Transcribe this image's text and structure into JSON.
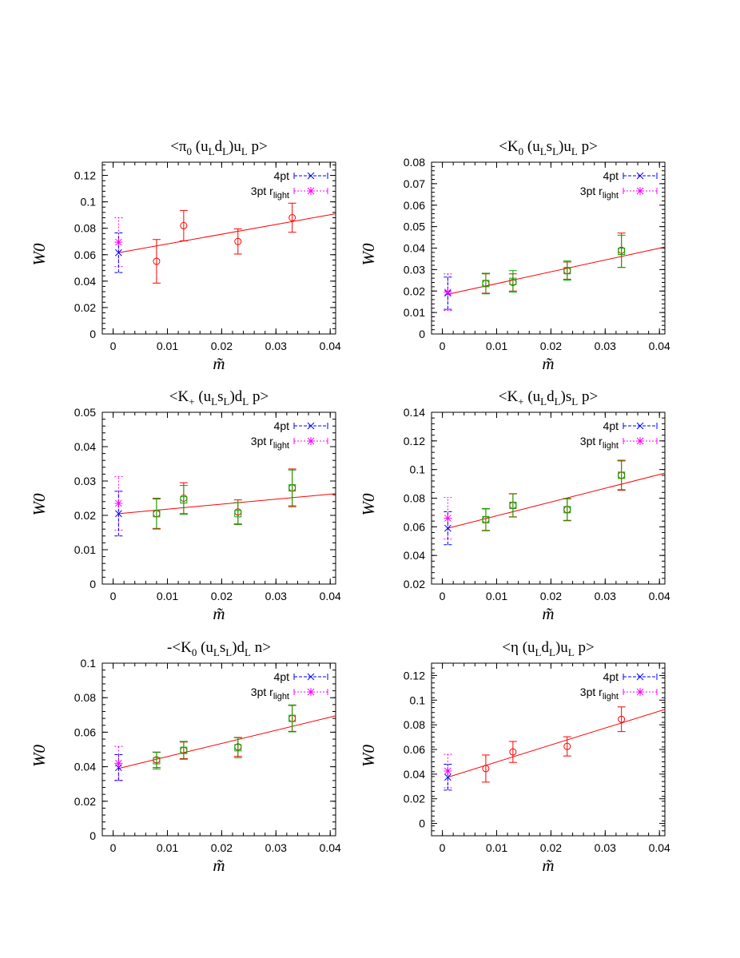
{
  "colors": {
    "fit": "#ff0000",
    "points_red": "#ff0000",
    "points_green": "#00aa00",
    "four_pt": "#0000ff",
    "three_pt": "#ff00ff",
    "axis": "#000000"
  },
  "chart_data": [
    {
      "type": "scatter",
      "title": "<π0 (uLdL)uL p>",
      "title_parts": [
        {
          "t": "<π"
        },
        {
          "t": "0",
          "sub": true
        },
        {
          "t": " (u"
        },
        {
          "t": "L",
          "sub": true
        },
        {
          "t": "d"
        },
        {
          "t": "L",
          "sub": true
        },
        {
          "t": ")u"
        },
        {
          "t": "L",
          "sub": true
        },
        {
          "t": " p>"
        }
      ],
      "xlabel": "m̃",
      "ylabel": "W0",
      "xlim": [
        -0.002,
        0.041
      ],
      "ylim": [
        0,
        0.13
      ],
      "x_ticks": [
        "0",
        "0.01",
        "0.02",
        "0.03",
        "0.04"
      ],
      "y_ticks": [
        "0",
        "0.02",
        "0.04",
        "0.06",
        "0.08",
        "0.1",
        "0.12"
      ],
      "legend": {
        "placement": "top-right",
        "entries": [
          "4pt",
          "3pt r"
        ],
        "entry2_sub": "light"
      },
      "fit_line": {
        "x": [
          0.001,
          0.041
        ],
        "y": [
          0.0615,
          0.091
        ]
      },
      "series": [
        {
          "name": "red",
          "marker": "circle",
          "points": [
            {
              "x": 0.008,
              "y": 0.055,
              "err": 0.0165
            },
            {
              "x": 0.013,
              "y": 0.082,
              "err": 0.0115
            },
            {
              "x": 0.023,
              "y": 0.07,
              "err": 0.0095
            },
            {
              "x": 0.033,
              "y": 0.088,
              "err": 0.011
            }
          ]
        }
      ],
      "four_pt": {
        "x": 0.001,
        "y": 0.0615,
        "err": 0.015
      },
      "three_pt": {
        "x": 0.001,
        "y": 0.0695,
        "err": 0.0185
      }
    },
    {
      "type": "scatter",
      "title": "<K0 (uLsL)uL p>",
      "title_parts": [
        {
          "t": "<K"
        },
        {
          "t": "0",
          "sub": true
        },
        {
          "t": " (u"
        },
        {
          "t": "L",
          "sub": true
        },
        {
          "t": "s"
        },
        {
          "t": "L",
          "sub": true
        },
        {
          "t": ")u"
        },
        {
          "t": "L",
          "sub": true
        },
        {
          "t": " p>"
        }
      ],
      "xlabel": "m̃",
      "ylabel": "W0",
      "xlim": [
        -0.002,
        0.041
      ],
      "ylim": [
        0,
        0.08
      ],
      "x_ticks": [
        "0",
        "0.01",
        "0.02",
        "0.03",
        "0.04"
      ],
      "y_ticks": [
        "0",
        "0.01",
        "0.02",
        "0.03",
        "0.04",
        "0.05",
        "0.06",
        "0.07",
        "0.08"
      ],
      "legend": {
        "placement": "top-right",
        "entries": [
          "4pt",
          "3pt r"
        ],
        "entry2_sub": "light"
      },
      "fit_line": {
        "x": [
          0.001,
          0.041
        ],
        "y": [
          0.0185,
          0.0405
        ]
      },
      "series": [
        {
          "name": "red",
          "marker": "circle",
          "points": [
            {
              "x": 0.008,
              "y": 0.0235,
              "err": 0.0045
            },
            {
              "x": 0.013,
              "y": 0.024,
              "err": 0.004
            },
            {
              "x": 0.023,
              "y": 0.0295,
              "err": 0.004
            },
            {
              "x": 0.033,
              "y": 0.039,
              "err": 0.008
            }
          ]
        },
        {
          "name": "green",
          "marker": "square",
          "points": [
            {
              "x": 0.008,
              "y": 0.0235,
              "err": 0.0048
            },
            {
              "x": 0.013,
              "y": 0.0245,
              "err": 0.005
            },
            {
              "x": 0.023,
              "y": 0.0295,
              "err": 0.0045
            },
            {
              "x": 0.033,
              "y": 0.0385,
              "err": 0.0075
            }
          ]
        }
      ],
      "four_pt": {
        "x": 0.001,
        "y": 0.019,
        "err": 0.0075
      },
      "three_pt": {
        "x": 0.001,
        "y": 0.0195,
        "err": 0.0085
      }
    },
    {
      "type": "scatter",
      "title": "<K+ (uLsL)dL p>",
      "title_parts": [
        {
          "t": "<K"
        },
        {
          "t": "+",
          "sub": true
        },
        {
          "t": " (u"
        },
        {
          "t": "L",
          "sub": true
        },
        {
          "t": "s"
        },
        {
          "t": "L",
          "sub": true
        },
        {
          "t": ")d"
        },
        {
          "t": "L",
          "sub": true
        },
        {
          "t": " p>"
        }
      ],
      "xlabel": "m̃",
      "ylabel": "W0",
      "xlim": [
        -0.002,
        0.041
      ],
      "ylim": [
        0,
        0.05
      ],
      "x_ticks": [
        "0",
        "0.01",
        "0.02",
        "0.03",
        "0.04"
      ],
      "y_ticks": [
        "0",
        "0.01",
        "0.02",
        "0.03",
        "0.04",
        "0.05"
      ],
      "legend": {
        "placement": "top-right",
        "entries": [
          "4pt",
          "3pt r"
        ],
        "entry2_sub": "light"
      },
      "fit_line": {
        "x": [
          0.001,
          0.041
        ],
        "y": [
          0.0205,
          0.0263
        ]
      },
      "series": [
        {
          "name": "red",
          "marker": "circle",
          "points": [
            {
              "x": 0.008,
              "y": 0.0205,
              "err": 0.0043
            },
            {
              "x": 0.013,
              "y": 0.025,
              "err": 0.0045
            },
            {
              "x": 0.023,
              "y": 0.021,
              "err": 0.0035
            },
            {
              "x": 0.033,
              "y": 0.028,
              "err": 0.0055
            }
          ]
        },
        {
          "name": "green",
          "marker": "square",
          "points": [
            {
              "x": 0.008,
              "y": 0.0205,
              "err": 0.0045
            },
            {
              "x": 0.013,
              "y": 0.0245,
              "err": 0.0042
            },
            {
              "x": 0.023,
              "y": 0.0205,
              "err": 0.0032
            },
            {
              "x": 0.033,
              "y": 0.028,
              "err": 0.0052
            }
          ]
        }
      ],
      "four_pt": {
        "x": 0.001,
        "y": 0.0205,
        "err": 0.0065
      },
      "three_pt": {
        "x": 0.001,
        "y": 0.0235,
        "err": 0.0078
      }
    },
    {
      "type": "scatter",
      "title": "<K+ (uLdL)sL p>",
      "title_parts": [
        {
          "t": "<K"
        },
        {
          "t": "+",
          "sub": true
        },
        {
          "t": " (u"
        },
        {
          "t": "L",
          "sub": true
        },
        {
          "t": "d"
        },
        {
          "t": "L",
          "sub": true
        },
        {
          "t": ")s"
        },
        {
          "t": "L",
          "sub": true
        },
        {
          "t": " p>"
        }
      ],
      "xlabel": "m̃",
      "ylabel": "W0",
      "xlim": [
        -0.002,
        0.041
      ],
      "ylim": [
        0.02,
        0.14
      ],
      "x_ticks": [
        "0",
        "0.01",
        "0.02",
        "0.03",
        "0.04"
      ],
      "y_ticks": [
        "0.02",
        "0.04",
        "0.06",
        "0.08",
        "0.1",
        "0.12",
        "0.14"
      ],
      "legend": {
        "placement": "top-right",
        "entries": [
          "4pt",
          "3pt r"
        ],
        "entry2_sub": "light"
      },
      "fit_line": {
        "x": [
          0.001,
          0.041
        ],
        "y": [
          0.059,
          0.0975
        ]
      },
      "series": [
        {
          "name": "red",
          "marker": "circle",
          "points": [
            {
              "x": 0.008,
              "y": 0.065,
              "err": 0.0075
            },
            {
              "x": 0.013,
              "y": 0.075,
              "err": 0.008
            },
            {
              "x": 0.023,
              "y": 0.072,
              "err": 0.0075
            },
            {
              "x": 0.033,
              "y": 0.096,
              "err": 0.0105
            }
          ]
        },
        {
          "name": "green",
          "marker": "square",
          "points": [
            {
              "x": 0.008,
              "y": 0.065,
              "err": 0.0078
            },
            {
              "x": 0.013,
              "y": 0.075,
              "err": 0.0082
            },
            {
              "x": 0.023,
              "y": 0.072,
              "err": 0.0078
            },
            {
              "x": 0.033,
              "y": 0.096,
              "err": 0.01
            }
          ]
        }
      ],
      "four_pt": {
        "x": 0.001,
        "y": 0.059,
        "err": 0.0115
      },
      "three_pt": {
        "x": 0.001,
        "y": 0.066,
        "err": 0.0145
      }
    },
    {
      "type": "scatter",
      "title": "-<K0 (uLsL)dL n>",
      "title_parts": [
        {
          "t": "-<K"
        },
        {
          "t": "0",
          "sub": true
        },
        {
          "t": " (u"
        },
        {
          "t": "L",
          "sub": true
        },
        {
          "t": "s"
        },
        {
          "t": "L",
          "sub": true
        },
        {
          "t": ")d"
        },
        {
          "t": "L",
          "sub": true
        },
        {
          "t": " n>"
        }
      ],
      "xlabel": "m̃",
      "ylabel": "W0",
      "xlim": [
        -0.002,
        0.041
      ],
      "ylim": [
        0,
        0.1
      ],
      "x_ticks": [
        "0",
        "0.01",
        "0.02",
        "0.03",
        "0.04"
      ],
      "y_ticks": [
        "0",
        "0.02",
        "0.04",
        "0.06",
        "0.08",
        "0.1"
      ],
      "legend": {
        "placement": "top-right",
        "entries": [
          "4pt",
          "3pt r"
        ],
        "entry2_sub": "light"
      },
      "fit_line": {
        "x": [
          0.001,
          0.041
        ],
        "y": [
          0.039,
          0.0695
        ]
      },
      "series": [
        {
          "name": "red",
          "marker": "circle",
          "points": [
            {
              "x": 0.008,
              "y": 0.044,
              "err": 0.0045
            },
            {
              "x": 0.013,
              "y": 0.0495,
              "err": 0.0048
            },
            {
              "x": 0.023,
              "y": 0.0515,
              "err": 0.0055
            },
            {
              "x": 0.033,
              "y": 0.068,
              "err": 0.0075
            }
          ]
        },
        {
          "name": "green",
          "marker": "square",
          "points": [
            {
              "x": 0.008,
              "y": 0.0435,
              "err": 0.0048
            },
            {
              "x": 0.013,
              "y": 0.0495,
              "err": 0.0052
            },
            {
              "x": 0.023,
              "y": 0.051,
              "err": 0.0058
            },
            {
              "x": 0.033,
              "y": 0.068,
              "err": 0.0078
            }
          ]
        }
      ],
      "four_pt": {
        "x": 0.001,
        "y": 0.0395,
        "err": 0.0075
      },
      "three_pt": {
        "x": 0.001,
        "y": 0.042,
        "err": 0.0098
      }
    },
    {
      "type": "scatter",
      "title": "<η (uLdL)uL p>",
      "title_parts": [
        {
          "t": "<η (u"
        },
        {
          "t": "L",
          "sub": true
        },
        {
          "t": "d"
        },
        {
          "t": "L",
          "sub": true
        },
        {
          "t": ")u"
        },
        {
          "t": "L",
          "sub": true
        },
        {
          "t": " p>"
        }
      ],
      "xlabel": "m̃",
      "ylabel": "W0",
      "xlim": [
        -0.002,
        0.041
      ],
      "ylim": [
        -0.01,
        0.13
      ],
      "x_ticks": [
        "0",
        "0.01",
        "0.02",
        "0.03",
        "0.04"
      ],
      "y_ticks": [
        "0",
        "0.02",
        "0.04",
        "0.06",
        "0.08",
        "0.1",
        "0.12"
      ],
      "legend": {
        "placement": "top-right",
        "entries": [
          "4pt",
          "3pt r"
        ],
        "entry2_sub": "light"
      },
      "fit_line": {
        "x": [
          0.001,
          0.041
        ],
        "y": [
          0.0375,
          0.0925
        ]
      },
      "series": [
        {
          "name": "red",
          "marker": "circle",
          "points": [
            {
              "x": 0.008,
              "y": 0.0445,
              "err": 0.011
            },
            {
              "x": 0.013,
              "y": 0.058,
              "err": 0.0085
            },
            {
              "x": 0.023,
              "y": 0.0625,
              "err": 0.0078
            },
            {
              "x": 0.033,
              "y": 0.0845,
              "err": 0.01
            }
          ]
        }
      ],
      "four_pt": {
        "x": 0.001,
        "y": 0.0375,
        "err": 0.0105
      },
      "three_pt": {
        "x": 0.001,
        "y": 0.0425,
        "err": 0.0135
      }
    }
  ]
}
